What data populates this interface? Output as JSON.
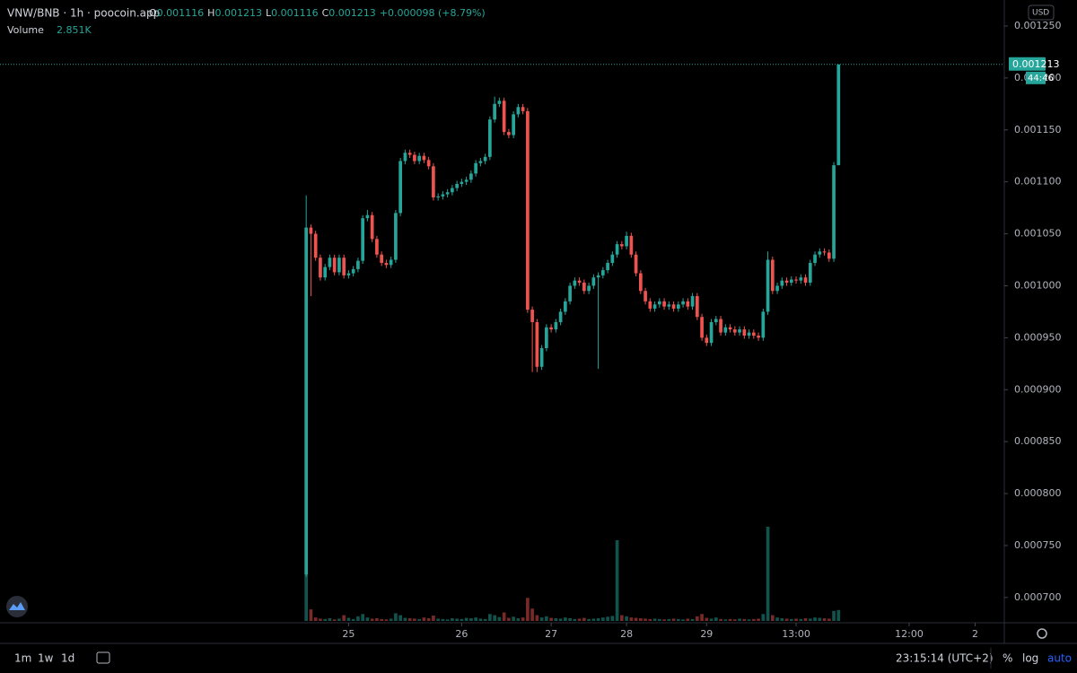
{
  "chart_data": {
    "type": "candlestick",
    "title": "VNW/BNB · 1h · poocoin.app",
    "ohlc_letters": [
      "O",
      "H",
      "L",
      "C"
    ],
    "change": "+0.000098 (+8.79%)",
    "volume_title": "Volume",
    "volume_last_label": "2.851K",
    "currency": "USD",
    "countdown": "44:46",
    "up_color": "#26a69a",
    "down_color": "#ef5350",
    "xlim": [
      -65,
      148
    ],
    "xticks": [
      {
        "value": 9,
        "label": "25"
      },
      {
        "value": 33,
        "label": "26"
      },
      {
        "value": 52,
        "label": "27"
      },
      {
        "value": 68,
        "label": "28"
      },
      {
        "value": 85,
        "label": "29"
      },
      {
        "value": 104,
        "label": "13:00"
      },
      {
        "value": 128,
        "label": "12:00"
      },
      {
        "value": 142,
        "label": "2"
      }
    ],
    "ylim": [
      0.0006757,
      0.001275
    ],
    "yticks": [
      {
        "value": 0.0007,
        "label": "0.000700"
      },
      {
        "value": 0.00075,
        "label": "0.000750"
      },
      {
        "value": 0.0008,
        "label": "0.000800"
      },
      {
        "value": 0.00085,
        "label": "0.000850"
      },
      {
        "value": 0.0009,
        "label": "0.000900"
      },
      {
        "value": 0.00095,
        "label": "0.000950"
      },
      {
        "value": 0.001,
        "label": "0.001000"
      },
      {
        "value": 0.00105,
        "label": "0.001050"
      },
      {
        "value": 0.0011,
        "label": "0.001100"
      },
      {
        "value": 0.00115,
        "label": "0.001150"
      },
      {
        "value": 0.0012,
        "label": "0.001200"
      },
      {
        "value": 0.00125,
        "label": "0.001250"
      }
    ],
    "open": [
      0.000722,
      0.001056,
      0.00105,
      0.001027,
      0.001008,
      0.001018,
      0.001027,
      0.001013,
      0.001027,
      0.00101,
      0.001012,
      0.001016,
      0.001024,
      0.001065,
      0.001068,
      0.001045,
      0.00103,
      0.001022,
      0.00102,
      0.001025,
      0.00107,
      0.00112,
      0.001128,
      0.001126,
      0.00112,
      0.001125,
      0.001121,
      0.001115,
      0.001085,
      0.001086,
      0.001088,
      0.00109,
      0.001094,
      0.001098,
      0.0011,
      0.001102,
      0.001108,
      0.001118,
      0.00112,
      0.001124,
      0.00116,
      0.001175,
      0.001178,
      0.001148,
      0.001145,
      0.001165,
      0.001172,
      0.001168,
      0.000977,
      0.000965,
      0.000922,
      0.00094,
      0.00096,
      0.000958,
      0.000965,
      0.000975,
      0.000985,
      0.001,
      0.001005,
      0.001003,
      0.000995,
      0.001,
      0.001008,
      0.00101,
      0.001015,
      0.001022,
      0.00103,
      0.00104,
      0.001038,
      0.001048,
      0.00103,
      0.001012,
      0.000995,
      0.000985,
      0.000978,
      0.000982,
      0.000985,
      0.00098,
      0.000982,
      0.000978,
      0.000982,
      0.000985,
      0.00098,
      0.00099,
      0.00097,
      0.00095,
      0.000945,
      0.000965,
      0.000968,
      0.000955,
      0.00096,
      0.000958,
      0.000955,
      0.000958,
      0.000952,
      0.000955,
      0.000952,
      0.00095,
      0.000975,
      0.001025,
      0.000995,
      0.001,
      0.001005,
      0.001003,
      0.001006,
      0.001005,
      0.001008,
      0.001003,
      0.001022,
      0.00103,
      0.001033,
      0.001032,
      0.001026,
      0.001116
    ],
    "high": [
      0.001087,
      0.001059,
      0.001053,
      0.00103,
      0.001021,
      0.00103,
      0.00103,
      0.00103,
      0.00103,
      0.001015,
      0.001019,
      0.001027,
      0.001068,
      0.001073,
      0.001071,
      0.001048,
      0.001033,
      0.001025,
      0.001028,
      0.001073,
      0.001123,
      0.001131,
      0.001131,
      0.001129,
      0.001128,
      0.001128,
      0.001124,
      0.001118,
      0.001089,
      0.001091,
      0.001093,
      0.001097,
      0.001101,
      0.001103,
      0.001105,
      0.001111,
      0.001121,
      0.001123,
      0.001127,
      0.001163,
      0.001182,
      0.001181,
      0.001181,
      0.001151,
      0.001168,
      0.001175,
      0.001175,
      0.001171,
      0.00098,
      0.000968,
      0.000943,
      0.000963,
      0.000963,
      0.000968,
      0.000978,
      0.000988,
      0.001003,
      0.001008,
      0.001008,
      0.001006,
      0.001003,
      0.001011,
      0.001013,
      0.001018,
      0.001025,
      0.001033,
      0.001043,
      0.001043,
      0.001052,
      0.001051,
      0.001033,
      0.001015,
      0.000998,
      0.000988,
      0.000985,
      0.000988,
      0.000988,
      0.000985,
      0.000985,
      0.000985,
      0.000988,
      0.000988,
      0.000993,
      0.000993,
      0.000973,
      0.000953,
      0.000968,
      0.000971,
      0.000971,
      0.000963,
      0.000963,
      0.000961,
      0.000961,
      0.000961,
      0.000958,
      0.000958,
      0.000955,
      0.000978,
      0.001033,
      0.001028,
      0.001003,
      0.001008,
      0.001008,
      0.001009,
      0.001009,
      0.001011,
      0.001011,
      0.001025,
      0.001033,
      0.001036,
      0.001036,
      0.001035,
      0.001119,
      0.001213
    ],
    "low": [
      0.00072,
      0.00099,
      0.001024,
      0.001005,
      0.001005,
      0.001015,
      0.00101,
      0.00101,
      0.001007,
      0.001007,
      0.001009,
      0.001013,
      0.001021,
      0.001062,
      0.001042,
      0.001027,
      0.001019,
      0.001017,
      0.001017,
      0.001022,
      0.001067,
      0.001117,
      0.001123,
      0.001117,
      0.001117,
      0.001118,
      0.001112,
      0.001082,
      0.001082,
      0.001083,
      0.001085,
      0.001087,
      0.001091,
      0.001095,
      0.001097,
      0.001099,
      0.001105,
      0.001115,
      0.001117,
      0.001121,
      0.001157,
      0.001172,
      0.001145,
      0.001142,
      0.001142,
      0.001162,
      0.001165,
      0.000974,
      0.000917,
      0.000917,
      0.000919,
      0.000937,
      0.000955,
      0.000955,
      0.000962,
      0.000972,
      0.000982,
      0.000997,
      0.001,
      0.000992,
      0.000992,
      0.000997,
      0.00092,
      0.001007,
      0.001012,
      0.001019,
      0.001027,
      0.001035,
      0.001035,
      0.001027,
      0.001009,
      0.000992,
      0.000982,
      0.000975,
      0.000975,
      0.000979,
      0.000977,
      0.000977,
      0.000975,
      0.000975,
      0.000979,
      0.000977,
      0.000977,
      0.000967,
      0.000947,
      0.000942,
      0.000942,
      0.000962,
      0.000952,
      0.000952,
      0.000955,
      0.000952,
      0.000952,
      0.000949,
      0.000949,
      0.000949,
      0.000947,
      0.000947,
      0.000972,
      0.000992,
      0.000992,
      0.000997,
      0.001,
      0.001,
      0.001002,
      0.001002,
      0.001,
      0.001,
      0.001019,
      0.001027,
      0.001029,
      0.001023,
      0.001023,
      0.001116
    ],
    "close": [
      0.001056,
      0.00105,
      0.001027,
      0.001008,
      0.001018,
      0.001027,
      0.001013,
      0.001027,
      0.00101,
      0.001012,
      0.001016,
      0.001024,
      0.001065,
      0.001068,
      0.001045,
      0.00103,
      0.001022,
      0.00102,
      0.001025,
      0.00107,
      0.00112,
      0.001128,
      0.001126,
      0.00112,
      0.001125,
      0.001121,
      0.001115,
      0.001085,
      0.001086,
      0.001088,
      0.00109,
      0.001094,
      0.001098,
      0.0011,
      0.001102,
      0.001108,
      0.001118,
      0.00112,
      0.001124,
      0.00116,
      0.001175,
      0.001178,
      0.001148,
      0.001145,
      0.001165,
      0.001172,
      0.001168,
      0.000977,
      0.000965,
      0.000922,
      0.00094,
      0.00096,
      0.000958,
      0.000965,
      0.000975,
      0.000985,
      0.001,
      0.001005,
      0.001003,
      0.000995,
      0.001,
      0.001008,
      0.00101,
      0.001015,
      0.001022,
      0.00103,
      0.00104,
      0.001038,
      0.001048,
      0.00103,
      0.001012,
      0.000995,
      0.000985,
      0.000978,
      0.000982,
      0.000985,
      0.00098,
      0.000982,
      0.000978,
      0.000982,
      0.000985,
      0.00098,
      0.00099,
      0.00097,
      0.00095,
      0.000945,
      0.000965,
      0.000968,
      0.000955,
      0.00096,
      0.000958,
      0.000955,
      0.000958,
      0.000952,
      0.000955,
      0.000952,
      0.00095,
      0.000975,
      0.001025,
      0.000995,
      0.001,
      0.001005,
      0.001003,
      0.001006,
      0.001005,
      0.001008,
      0.001003,
      0.001022,
      0.00103,
      0.001033,
      0.001032,
      0.001026,
      0.001116,
      0.001213
    ],
    "volume": [
      12000,
      3000,
      900,
      600,
      500,
      700,
      400,
      600,
      1500,
      800,
      500,
      1200,
      1800,
      900,
      600,
      700,
      500,
      400,
      600,
      2000,
      1500,
      800,
      700,
      600,
      500,
      900,
      700,
      1400,
      600,
      500,
      400,
      700,
      600,
      500,
      800,
      700,
      900,
      600,
      500,
      1800,
      1500,
      1000,
      2200,
      800,
      1100,
      700,
      900,
      6000,
      3200,
      1500,
      900,
      1200,
      800,
      700,
      600,
      900,
      700,
      500,
      600,
      800,
      500,
      600,
      700,
      900,
      1100,
      1300,
      21000,
      1500,
      1200,
      900,
      800,
      700,
      600,
      500,
      600,
      500,
      400,
      500,
      600,
      500,
      400,
      600,
      500,
      1200,
      1800,
      800,
      600,
      900,
      500,
      400,
      500,
      400,
      600,
      500,
      400,
      500,
      600,
      1800,
      24500,
      1500,
      900,
      700,
      600,
      500,
      600,
      500,
      700,
      600,
      900,
      800,
      700,
      600,
      2600,
      2851
    ],
    "toolbar": [
      "1m",
      "1w",
      "1d"
    ],
    "clock": "23:15:14 (UTC+2)",
    "scale_buttons": [
      "%",
      "log",
      "auto"
    ]
  }
}
